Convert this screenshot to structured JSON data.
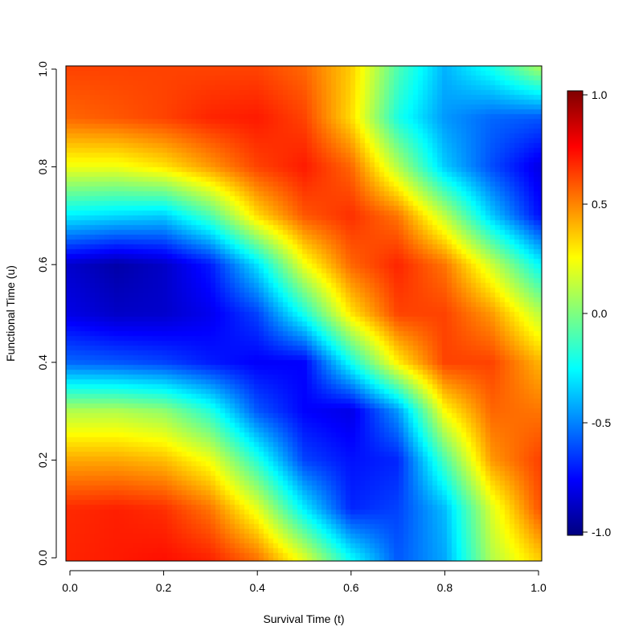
{
  "chart_data": {
    "type": "heatmap",
    "title": "",
    "xlabel": "Survival Time (t)",
    "ylabel": "Functional Time (u)",
    "xlim": [
      0,
      1
    ],
    "ylim": [
      0,
      1
    ],
    "x_ticks": [
      "0.0",
      "0.2",
      "0.4",
      "0.6",
      "0.8",
      "1.0"
    ],
    "y_ticks": [
      "0.0",
      "0.2",
      "0.4",
      "0.6",
      "0.8",
      "1.0"
    ],
    "colorbar": {
      "range": [
        -1,
        1
      ],
      "ticks": [
        "-1.0",
        "-0.5",
        "0.0",
        "0.5",
        "1.0"
      ],
      "colormap": "jet"
    },
    "grid": {
      "x": [
        0.0,
        0.1,
        0.2,
        0.3,
        0.4,
        0.5,
        0.6,
        0.7,
        0.8,
        0.9,
        1.0
      ],
      "y": [
        0.0,
        0.1,
        0.2,
        0.3,
        0.4,
        0.5,
        0.6,
        0.7,
        0.8,
        0.9,
        1.0
      ],
      "z": [
        [
          0.68,
          0.7,
          0.72,
          0.68,
          0.52,
          0.18,
          -0.25,
          -0.58,
          -0.42,
          0.1,
          0.35
        ],
        [
          0.67,
          0.69,
          0.66,
          0.52,
          0.2,
          -0.28,
          -0.68,
          -0.62,
          -0.38,
          0.18,
          0.58
        ],
        [
          0.42,
          0.42,
          0.38,
          0.22,
          -0.18,
          -0.62,
          -0.72,
          -0.68,
          -0.1,
          0.45,
          0.62
        ],
        [
          0.1,
          0.1,
          0.04,
          -0.18,
          -0.58,
          -0.75,
          -0.8,
          -0.45,
          0.25,
          0.55,
          0.52
        ],
        [
          -0.55,
          -0.58,
          -0.62,
          -0.7,
          -0.76,
          -0.75,
          -0.22,
          0.28,
          0.62,
          0.62,
          0.4
        ],
        [
          -0.8,
          -0.86,
          -0.85,
          -0.78,
          -0.62,
          -0.2,
          0.3,
          0.62,
          0.62,
          0.45,
          0.12
        ],
        [
          -0.85,
          -0.92,
          -0.86,
          -0.7,
          -0.3,
          0.22,
          0.55,
          0.68,
          0.52,
          0.15,
          -0.25
        ],
        [
          -0.28,
          -0.32,
          -0.35,
          -0.1,
          0.32,
          0.58,
          0.66,
          0.52,
          0.12,
          -0.35,
          -0.72
        ],
        [
          0.22,
          0.22,
          0.3,
          0.45,
          0.62,
          0.7,
          0.55,
          0.1,
          -0.35,
          -0.6,
          -0.8
        ],
        [
          0.55,
          0.58,
          0.62,
          0.68,
          0.7,
          0.62,
          0.32,
          -0.2,
          -0.45,
          -0.55,
          -0.58
        ],
        [
          0.62,
          0.62,
          0.62,
          0.62,
          0.62,
          0.55,
          0.35,
          -0.1,
          -0.4,
          -0.22,
          0.05
        ]
      ]
    }
  }
}
